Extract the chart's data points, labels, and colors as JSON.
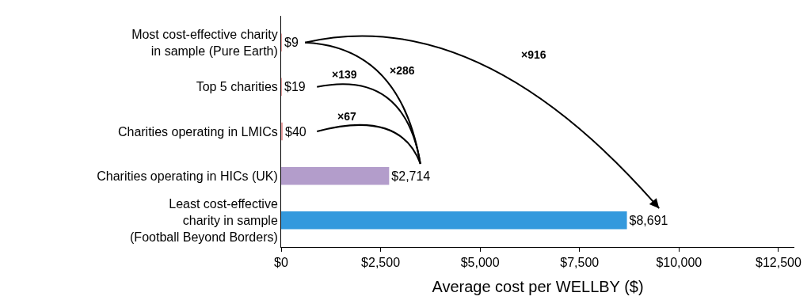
{
  "chart_data": {
    "type": "bar",
    "orientation": "horizontal",
    "xlabel": "Average cost per WELLBY ($)",
    "categories": [
      "Most cost-effective charity\nin sample (Pure Earth)",
      "Top 5 charities",
      "Charities operating in LMICs",
      "Charities operating in HICs (UK)",
      "Least cost-effective\ncharity in sample\n(Football Beyond Borders)"
    ],
    "values": [
      9,
      19,
      40,
      2714,
      8691
    ],
    "colors": [
      "#e8a0a0",
      "#e8a0a0",
      "#e8a0a0",
      "#b39dcb",
      "#3399dd"
    ],
    "value_labels": [
      "$9",
      "$19",
      "$40",
      "$2,714",
      "$8,691"
    ],
    "xlim": [
      0,
      12900
    ],
    "xticks": [
      {
        "value": 0,
        "label": "$0"
      },
      {
        "value": 2500,
        "label": "$2,500"
      },
      {
        "value": 5000,
        "label": "$5,000"
      },
      {
        "value": 7500,
        "label": "$7,500"
      },
      {
        "value": 10000,
        "label": "$10,000"
      },
      {
        "value": 12500,
        "label": "$12,500"
      }
    ],
    "annotations": [
      "×916",
      "×286",
      "×139",
      "×67"
    ]
  }
}
